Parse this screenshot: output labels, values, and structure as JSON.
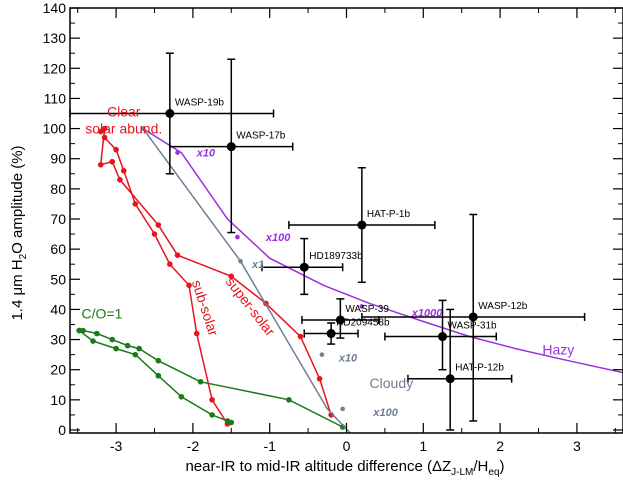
{
  "chart_data": {
    "type": "scatter",
    "xlabel": "near-IR to mid-IR altitude difference (ΔZ",
    "xlabel_sub": "J-LM",
    "xlabel_mid": "/H",
    "xlabel_sub2": "eq",
    "xlabel_end": ")",
    "ylabel_pre": "1.4 μm H",
    "ylabel_sub": "2",
    "ylabel_post": "O amplitude (%)",
    "xlim": [
      -3.6,
      3.6
    ],
    "ylim": [
      -1,
      140
    ],
    "x_ticks": [
      -3,
      -2,
      -1,
      0,
      1,
      2,
      3
    ],
    "x_tick_labels": [
      "-3",
      "-2",
      "-1",
      "0",
      "1",
      "2",
      "3"
    ],
    "y_ticks": [
      0,
      10,
      20,
      30,
      40,
      50,
      60,
      70,
      80,
      90,
      100,
      110,
      120,
      130,
      140
    ],
    "y_tick_labels": [
      "0",
      "10",
      "20",
      "30",
      "40",
      "50",
      "60",
      "70",
      "80",
      "90",
      "100",
      "110",
      "120",
      "130",
      "140"
    ],
    "planets": [
      {
        "name": "WASP-19b",
        "x": -2.3,
        "y": 105,
        "xerr": [
          1.3,
          1.35
        ],
        "yerr": [
          20,
          20
        ]
      },
      {
        "name": "WASP-17b",
        "x": -1.5,
        "y": 94,
        "xerr": [
          0.8,
          0.8
        ],
        "yerr": [
          28.5,
          29
        ]
      },
      {
        "name": "HAT-P-1b",
        "x": 0.2,
        "y": 68,
        "xerr": [
          0.95,
          0.95
        ],
        "yerr": [
          19,
          19
        ]
      },
      {
        "name": "HD189733b",
        "x": -0.55,
        "y": 54,
        "xerr": [
          0.55,
          0.5
        ],
        "yerr": [
          9,
          9.5
        ]
      },
      {
        "name": "WASP-39",
        "x": -0.08,
        "y": 36.5,
        "xerr": [
          0.5,
          0.5
        ],
        "yerr": [
          6,
          7
        ]
      },
      {
        "name": "HD209458b",
        "x": -0.2,
        "y": 32,
        "xerr": [
          0.35,
          0.35
        ],
        "yerr": [
          3.5,
          3.5
        ]
      },
      {
        "name": "WASP-12b",
        "x": 1.65,
        "y": 37.5,
        "xerr": [
          1.45,
          1.45
        ],
        "yerr": [
          34.5,
          34
        ]
      },
      {
        "name": "WASP-31b",
        "x": 1.25,
        "y": 31,
        "xerr": [
          0.75,
          0.7
        ],
        "yerr": [
          11,
          12
        ]
      },
      {
        "name": "HAT-P-12b",
        "x": 1.35,
        "y": 17,
        "xerr": [
          0.55,
          0.8
        ],
        "yerr": [
          17,
          23
        ]
      }
    ],
    "models": [
      {
        "name": "Clear solar abund.",
        "color": "#e8141b",
        "label_lines": [
          "Clear",
          "solar abund."
        ],
        "x": [
          -3.2,
          -3.15,
          -3.2,
          -3.05,
          -2.95,
          -2.45,
          -2.2,
          -1.5,
          -1.05,
          -0.6,
          -0.35,
          -0.2
        ],
        "y": [
          99,
          100,
          88,
          89,
          83,
          68,
          58,
          51,
          42,
          31,
          17,
          5
        ]
      },
      {
        "name": "sub-solar",
        "color": "#e8141b",
        "x": [
          -3.15,
          -3.0,
          -2.9,
          -2.75,
          -2.5,
          -2.3,
          -2.05,
          -1.95,
          -1.75,
          -1.55
        ],
        "y": [
          97,
          93,
          86,
          75,
          65,
          55,
          48,
          32,
          10,
          2
        ]
      },
      {
        "name": "C/O=1",
        "color": "#1a7a1a",
        "x": [
          -3.48,
          -3.43,
          -3.25,
          -3.05,
          -2.85,
          -2.7,
          -2.45,
          -1.9,
          -0.75,
          -0.05
        ],
        "y": [
          33,
          33,
          32,
          30,
          28,
          27,
          23,
          16,
          10,
          1
        ]
      },
      {
        "name": "C/O=1 (sub)",
        "color": "#1a7a1a",
        "x": [
          -3.48,
          -3.3,
          -3.0,
          -2.75,
          -2.45,
          -2.15,
          -1.75,
          -1.55,
          -1.5
        ],
        "y": [
          33,
          29.5,
          27,
          25,
          18,
          11,
          5,
          3,
          2.5
        ]
      },
      {
        "name": "Hazy",
        "color": "#9b30e0",
        "x": [
          -2.65,
          -2.15,
          -1.55,
          -1.0,
          -0.3,
          0.3,
          1.0,
          1.6,
          2.2,
          2.8,
          3.6
        ],
        "y": [
          100,
          92,
          70,
          57,
          48,
          42,
          36,
          31,
          27,
          23.5,
          19
        ]
      },
      {
        "name": "Cloudy",
        "color": "#6e7f93",
        "x": [
          -2.65,
          -1.38,
          -0.25,
          0.05
        ],
        "y": [
          100,
          56,
          7,
          -1
        ]
      }
    ],
    "model_markers": [
      {
        "model": "Hazy",
        "x": -2.2,
        "y": 92
      },
      {
        "model": "Hazy",
        "x": -1.42,
        "y": 64
      },
      {
        "model": "Hazy",
        "x": 0.2,
        "y": 41
      },
      {
        "model": "Cloudy",
        "x": -2.65,
        "y": 100
      },
      {
        "model": "Cloudy",
        "x": -1.38,
        "y": 56
      },
      {
        "model": "Cloudy",
        "x": -0.32,
        "y": 25
      },
      {
        "model": "Cloudy",
        "x": -0.05,
        "y": 7
      }
    ],
    "scale_labels": [
      {
        "text": "x10",
        "color": "#9b30e0",
        "x": -1.95,
        "y": 92
      },
      {
        "text": "x100",
        "color": "#9b30e0",
        "x": -1.05,
        "y": 64
      },
      {
        "text": "x1000",
        "color": "#9b30e0",
        "x": 0.85,
        "y": 39
      },
      {
        "text": "x1",
        "color": "#6e7f93",
        "x": -1.23,
        "y": 55
      },
      {
        "text": "x10",
        "color": "#6e7f93",
        "x": -0.1,
        "y": 24
      },
      {
        "text": "x100",
        "color": "#6e7f93",
        "x": 0.35,
        "y": 6
      }
    ],
    "curve_labels": [
      {
        "text": "C/O=1",
        "color": "#1a7a1a",
        "x": -3.45,
        "y": 37,
        "rotate": 0
      },
      {
        "text": "sub-solar",
        "color": "#e8141b",
        "x": -1.9,
        "y": 40,
        "rotate": 72
      },
      {
        "text": "super-solar",
        "color": "#e8141b",
        "x": -1.3,
        "y": 40,
        "rotate": 52
      },
      {
        "text": "Cloudy",
        "color": "#6e7f93",
        "x": 0.3,
        "y": 14,
        "rotate": 0
      },
      {
        "text": "Hazy",
        "color": "#9b30e0",
        "x": 2.55,
        "y": 25,
        "rotate": 0
      }
    ]
  }
}
